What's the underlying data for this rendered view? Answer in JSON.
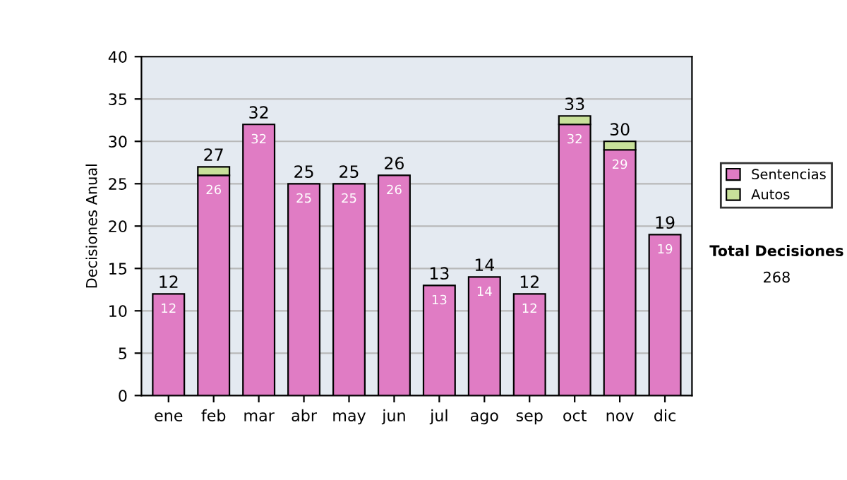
{
  "chart_data": {
    "type": "bar",
    "stacked": true,
    "ylabel": "Decisiones Anual",
    "categories": [
      "ene",
      "feb",
      "mar",
      "abr",
      "may",
      "jun",
      "jul",
      "ago",
      "sep",
      "oct",
      "nov",
      "dic"
    ],
    "series": [
      {
        "name": "Sentencias",
        "color": "#e07cc4",
        "values": [
          12,
          26,
          32,
          25,
          25,
          26,
          13,
          14,
          12,
          32,
          29,
          19
        ],
        "value_labels": [
          "12",
          "26",
          "32",
          "25",
          "25",
          "26",
          "13",
          "14",
          "12",
          "32",
          "29",
          "19"
        ]
      },
      {
        "name": "Autos",
        "color": "#c8e09a",
        "values": [
          null,
          1,
          null,
          null,
          null,
          null,
          null,
          null,
          null,
          1,
          1,
          null
        ]
      }
    ],
    "totals": [
      "12",
      "27",
      "32",
      "25",
      "25",
      "26",
      "13",
      "14",
      "12",
      "33",
      "30",
      "19"
    ],
    "ylim": [
      0,
      40
    ],
    "yticks": [
      0,
      5,
      10,
      15,
      20,
      25,
      30,
      35,
      40
    ],
    "grid": "y",
    "legend": "right",
    "annotations": [
      "Total Decisiones",
      "268"
    ]
  }
}
